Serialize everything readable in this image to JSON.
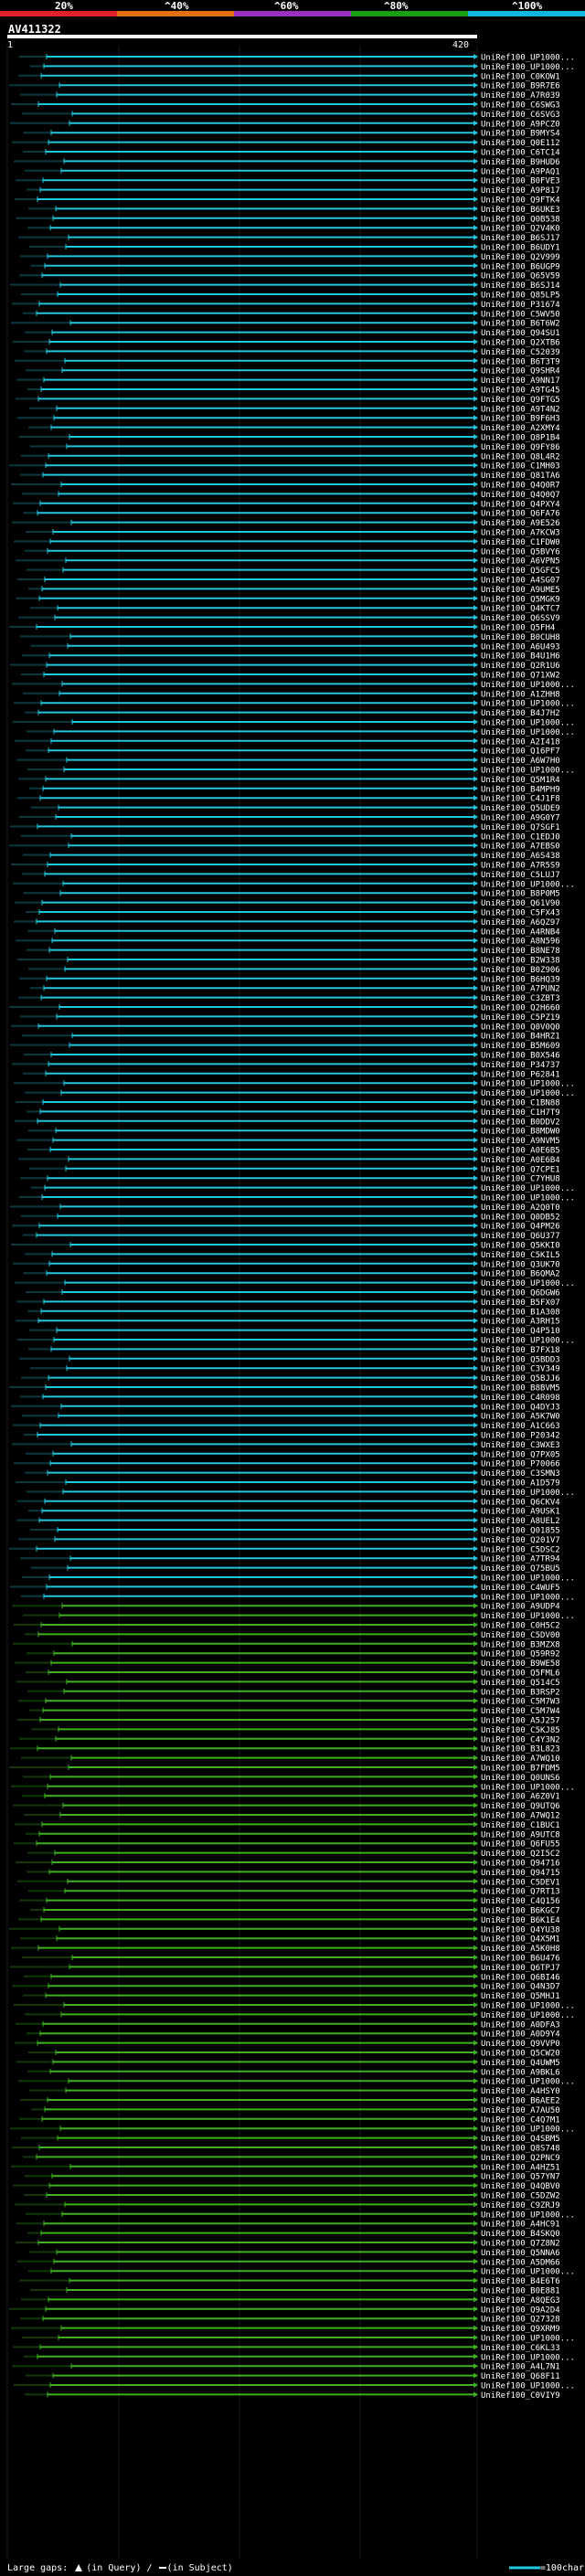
{
  "scale": {
    "ticks": [
      "20%",
      "^40%",
      "^60%",
      "^80%",
      "^100%"
    ],
    "colors": [
      "#e0202a",
      "#e07010",
      "#9a30c0",
      "#18a010",
      "#10b8e0"
    ]
  },
  "query": {
    "id": "AV411322",
    "start": "1",
    "end": "420"
  },
  "hits": [
    {
      "label": "UniRef100_UP1000...",
      "color": "cyan"
    },
    {
      "label": "UniRef100_UP1000...",
      "color": "cyan"
    },
    {
      "label": "UniRef100_C0KOW1",
      "color": "cyan"
    },
    {
      "label": "UniRef100_B9R7E6",
      "color": "cyan"
    },
    {
      "label": "UniRef100_A7R039",
      "color": "cyan"
    },
    {
      "label": "UniRef100_C6SWG3",
      "color": "cyan"
    },
    {
      "label": "UniRef100_C6SVG3",
      "color": "cyan"
    },
    {
      "label": "UniRef100_A9PCZ0",
      "color": "cyan"
    },
    {
      "label": "UniRef100_B9MYS4",
      "color": "cyan"
    },
    {
      "label": "UniRef100_Q0E112",
      "color": "cyan"
    },
    {
      "label": "UniRef100_C6TC14",
      "color": "cyan"
    },
    {
      "label": "UniRef100_B9HUD6",
      "color": "cyan"
    },
    {
      "label": "UniRef100_A9PAQ1",
      "color": "cyan"
    },
    {
      "label": "UniRef100_B0FVE3",
      "color": "cyan"
    },
    {
      "label": "UniRef100_A9P817",
      "color": "cyan"
    },
    {
      "label": "UniRef100_Q9FTK4",
      "color": "cyan"
    },
    {
      "label": "UniRef100_B6UKE3",
      "color": "cyan"
    },
    {
      "label": "UniRef100_Q0B538",
      "color": "cyan"
    },
    {
      "label": "UniRef100_Q2V4K0",
      "color": "cyan"
    },
    {
      "label": "UniRef100_B6SJ17",
      "color": "cyan"
    },
    {
      "label": "UniRef100_B6UDY1",
      "color": "cyan"
    },
    {
      "label": "UniRef100_Q2V999",
      "color": "cyan"
    },
    {
      "label": "UniRef100_B6UGP9",
      "color": "cyan"
    },
    {
      "label": "UniRef100_Q65V59",
      "color": "cyan"
    },
    {
      "label": "UniRef100_B6SJ14",
      "color": "cyan"
    },
    {
      "label": "UniRef100_Q85LP5",
      "color": "cyan"
    },
    {
      "label": "UniRef100_P31674",
      "color": "cyan"
    },
    {
      "label": "UniRef100_C5WV50",
      "color": "cyan"
    },
    {
      "label": "UniRef100_B6T6W2",
      "color": "cyan"
    },
    {
      "label": "UniRef100_Q94SU1",
      "color": "cyan"
    },
    {
      "label": "UniRef100_Q2XTB6",
      "color": "cyan"
    },
    {
      "label": "UniRef100_C52039",
      "color": "cyan"
    },
    {
      "label": "UniRef100_B6T3T9",
      "color": "cyan"
    },
    {
      "label": "UniRef100_Q9SHR4",
      "color": "cyan"
    },
    {
      "label": "UniRef100_A9NN17",
      "color": "cyan"
    },
    {
      "label": "UniRef100_A9TG45",
      "color": "cyan"
    },
    {
      "label": "UniRef100_Q9FTG5",
      "color": "cyan"
    },
    {
      "label": "UniRef100_A9T4N2",
      "color": "cyan"
    },
    {
      "label": "UniRef100_B9F6H3",
      "color": "cyan"
    },
    {
      "label": "UniRef100_A2XMY4",
      "color": "cyan"
    },
    {
      "label": "UniRef100_Q8P1B4",
      "color": "cyan"
    },
    {
      "label": "UniRef100_Q9FY86",
      "color": "cyan"
    },
    {
      "label": "UniRef100_Q8L4R2",
      "color": "cyan"
    },
    {
      "label": "UniRef100_C1MH03",
      "color": "cyan"
    },
    {
      "label": "UniRef100_Q81TA6",
      "color": "cyan"
    },
    {
      "label": "UniRef100_Q4Q0R7",
      "color": "cyan"
    },
    {
      "label": "UniRef100_Q4Q0Q7",
      "color": "cyan"
    },
    {
      "label": "UniRef100_Q4PXY4",
      "color": "cyan"
    },
    {
      "label": "UniRef100_Q6FA76",
      "color": "cyan"
    },
    {
      "label": "UniRef100_A9E526",
      "color": "cyan"
    },
    {
      "label": "UniRef100_A7KCW3",
      "color": "cyan"
    },
    {
      "label": "UniRef100_C1FDW0",
      "color": "cyan"
    },
    {
      "label": "UniRef100_Q5BVY6",
      "color": "cyan"
    },
    {
      "label": "UniRef100_A6VPN5",
      "color": "cyan"
    },
    {
      "label": "UniRef100_Q5GFC5",
      "color": "cyan"
    },
    {
      "label": "UniRef100_A4SG07",
      "color": "cyan"
    },
    {
      "label": "UniRef100_A9UME5",
      "color": "cyan"
    },
    {
      "label": "UniRef100_Q5MGK9",
      "color": "cyan"
    },
    {
      "label": "UniRef100_Q4KTC7",
      "color": "cyan"
    },
    {
      "label": "UniRef100_Q6SSV9",
      "color": "cyan"
    },
    {
      "label": "UniRef100_Q5FH4",
      "color": "cyan"
    },
    {
      "label": "UniRef100_B0CUH8",
      "color": "cyan"
    },
    {
      "label": "UniRef100_A6U493",
      "color": "cyan"
    },
    {
      "label": "UniRef100_B4U1H6",
      "color": "cyan"
    },
    {
      "label": "UniRef100_Q2R1U6",
      "color": "cyan"
    },
    {
      "label": "UniRef100_Q71XW2",
      "color": "cyan"
    },
    {
      "label": "UniRef100_UP1000...",
      "color": "cyan"
    },
    {
      "label": "UniRef100_A1ZHH8",
      "color": "cyan"
    },
    {
      "label": "UniRef100_UP1000...",
      "color": "cyan"
    },
    {
      "label": "UniRef100_B4J7H2",
      "color": "cyan"
    },
    {
      "label": "UniRef100_UP1000...",
      "color": "cyan"
    },
    {
      "label": "UniRef100_UP1000...",
      "color": "cyan"
    },
    {
      "label": "UniRef100_A2I418",
      "color": "cyan"
    },
    {
      "label": "UniRef100_Q16PF7",
      "color": "cyan"
    },
    {
      "label": "UniRef100_A6W7H0",
      "color": "cyan"
    },
    {
      "label": "UniRef100_UP1000...",
      "color": "cyan"
    },
    {
      "label": "UniRef100_Q5M1R4",
      "color": "cyan"
    },
    {
      "label": "UniRef100_B4MPH9",
      "color": "cyan"
    },
    {
      "label": "UniRef100_C4J1F8",
      "color": "cyan"
    },
    {
      "label": "UniRef100_Q5UDE9",
      "color": "cyan"
    },
    {
      "label": "UniRef100_A9G0Y7",
      "color": "cyan"
    },
    {
      "label": "UniRef100_Q7SGF1",
      "color": "cyan"
    },
    {
      "label": "UniRef100_C1EDJ0",
      "color": "cyan"
    },
    {
      "label": "UniRef100_A7EBS0",
      "color": "cyan"
    },
    {
      "label": "UniRef100_A6S438",
      "color": "cyan"
    },
    {
      "label": "UniRef100_A7R5S9",
      "color": "cyan"
    },
    {
      "label": "UniRef100_C5LUJ7",
      "color": "cyan"
    },
    {
      "label": "UniRef100_UP1000...",
      "color": "cyan"
    },
    {
      "label": "UniRef100_B8P0M5",
      "color": "cyan"
    },
    {
      "label": "UniRef100_Q61V90",
      "color": "cyan"
    },
    {
      "label": "UniRef100_C5FX43",
      "color": "cyan"
    },
    {
      "label": "UniRef100_A6QZ97",
      "color": "cyan"
    },
    {
      "label": "UniRef100_A4RNB4",
      "color": "cyan"
    },
    {
      "label": "UniRef100_A8N596",
      "color": "cyan"
    },
    {
      "label": "UniRef100_B8NE78",
      "color": "cyan"
    },
    {
      "label": "UniRef100_B2W338",
      "color": "cyan"
    },
    {
      "label": "UniRef100_B0Z906",
      "color": "cyan"
    },
    {
      "label": "UniRef100_B6HQ39",
      "color": "cyan"
    },
    {
      "label": "UniRef100_A7PUN2",
      "color": "cyan"
    },
    {
      "label": "UniRef100_C3ZBT3",
      "color": "cyan"
    },
    {
      "label": "UniRef100_Q2H660",
      "color": "cyan"
    },
    {
      "label": "UniRef100_C5PZ19",
      "color": "cyan"
    },
    {
      "label": "UniRef100_Q0V0Q0",
      "color": "cyan"
    },
    {
      "label": "UniRef100_B4HRZ1",
      "color": "cyan"
    },
    {
      "label": "UniRef100_B5M609",
      "color": "cyan"
    },
    {
      "label": "UniRef100_B0X546",
      "color": "cyan"
    },
    {
      "label": "UniRef100_P34737",
      "color": "cyan"
    },
    {
      "label": "UniRef100_P62841",
      "color": "cyan"
    },
    {
      "label": "UniRef100_UP1000...",
      "color": "cyan"
    },
    {
      "label": "UniRef100_UP1000...",
      "color": "cyan"
    },
    {
      "label": "UniRef100_C1BN88",
      "color": "cyan"
    },
    {
      "label": "UniRef100_C1H7T9",
      "color": "cyan"
    },
    {
      "label": "UniRef100_B0DDV2",
      "color": "cyan"
    },
    {
      "label": "UniRef100_B8MDW0",
      "color": "cyan"
    },
    {
      "label": "UniRef100_A9NVM5",
      "color": "cyan"
    },
    {
      "label": "UniRef100_A0E6B5",
      "color": "cyan"
    },
    {
      "label": "UniRef100_A0E6B4",
      "color": "cyan"
    },
    {
      "label": "UniRef100_Q7CPE1",
      "color": "cyan"
    },
    {
      "label": "UniRef100_C7YHU8",
      "color": "cyan"
    },
    {
      "label": "UniRef100_UP1000...",
      "color": "cyan"
    },
    {
      "label": "UniRef100_UP1000...",
      "color": "cyan"
    },
    {
      "label": "UniRef100_A2Q0T0",
      "color": "cyan"
    },
    {
      "label": "UniRef100_Q0DB52",
      "color": "cyan"
    },
    {
      "label": "UniRef100_Q4PM26",
      "color": "cyan"
    },
    {
      "label": "UniRef100_Q6U377",
      "color": "cyan"
    },
    {
      "label": "UniRef100_Q5KKI0",
      "color": "cyan"
    },
    {
      "label": "UniRef100_C5KIL5",
      "color": "cyan"
    },
    {
      "label": "UniRef100_Q3UK70",
      "color": "cyan"
    },
    {
      "label": "UniRef100_B6QMA2",
      "color": "cyan"
    },
    {
      "label": "UniRef100_UP1000...",
      "color": "cyan"
    },
    {
      "label": "UniRef100_Q6DGW6",
      "color": "cyan"
    },
    {
      "label": "UniRef100_B5FX07",
      "color": "cyan"
    },
    {
      "label": "UniRef100_B1A308",
      "color": "cyan"
    },
    {
      "label": "UniRef100_A3RH15",
      "color": "cyan"
    },
    {
      "label": "UniRef100_Q4P510",
      "color": "cyan"
    },
    {
      "label": "UniRef100_UP1000...",
      "color": "cyan"
    },
    {
      "label": "UniRef100_B7FX18",
      "color": "cyan"
    },
    {
      "label": "UniRef100_Q5BDD3",
      "color": "cyan"
    },
    {
      "label": "UniRef100_C3V349",
      "color": "cyan"
    },
    {
      "label": "UniRef100_Q5BJJ6",
      "color": "cyan"
    },
    {
      "label": "UniRef100_B8BVM5",
      "color": "cyan"
    },
    {
      "label": "UniRef100_C4R098",
      "color": "cyan"
    },
    {
      "label": "UniRef100_Q4DYJ3",
      "color": "cyan"
    },
    {
      "label": "UniRef100_A5K7W0",
      "color": "cyan"
    },
    {
      "label": "UniRef100_A1C663",
      "color": "cyan"
    },
    {
      "label": "UniRef100_P20342",
      "color": "cyan"
    },
    {
      "label": "UniRef100_C3WXE3",
      "color": "cyan"
    },
    {
      "label": "UniRef100_Q7PX05",
      "color": "cyan"
    },
    {
      "label": "UniRef100_P70066",
      "color": "cyan"
    },
    {
      "label": "UniRef100_C3SMN3",
      "color": "cyan"
    },
    {
      "label": "UniRef100_A1D579",
      "color": "cyan"
    },
    {
      "label": "UniRef100_UP1000...",
      "color": "cyan"
    },
    {
      "label": "UniRef100_Q6CKV4",
      "color": "cyan"
    },
    {
      "label": "UniRef100_A9USK1",
      "color": "cyan"
    },
    {
      "label": "UniRef100_A8UEL2",
      "color": "cyan"
    },
    {
      "label": "UniRef100_Q01855",
      "color": "cyan"
    },
    {
      "label": "UniRef100_Q201V7",
      "color": "cyan"
    },
    {
      "label": "UniRef100_C5DSC2",
      "color": "cyan"
    },
    {
      "label": "UniRef100_A7TR94",
      "color": "cyan"
    },
    {
      "label": "UniRef100_Q75BU5",
      "color": "cyan"
    },
    {
      "label": "UniRef100_UP1000...",
      "color": "cyan"
    },
    {
      "label": "UniRef100_C4WUF5",
      "color": "cyan"
    },
    {
      "label": "UniRef100_UP1000...",
      "color": "cyan"
    },
    {
      "label": "UniRef100_A9UDP4",
      "color": "green"
    },
    {
      "label": "UniRef100_UP1000...",
      "color": "green"
    },
    {
      "label": "UniRef100_C0H5C2",
      "color": "green"
    },
    {
      "label": "UniRef100_C5DV00",
      "color": "green"
    },
    {
      "label": "UniRef100_B3MZX8",
      "color": "green"
    },
    {
      "label": "UniRef100_Q59R92",
      "color": "green"
    },
    {
      "label": "UniRef100_B9WE58",
      "color": "green"
    },
    {
      "label": "UniRef100_Q5FML6",
      "color": "green"
    },
    {
      "label": "UniRef100_Q514C5",
      "color": "green"
    },
    {
      "label": "UniRef100_B3RSP2",
      "color": "green"
    },
    {
      "label": "UniRef100_C5M7W3",
      "color": "green"
    },
    {
      "label": "UniRef100_C5M7W4",
      "color": "green"
    },
    {
      "label": "UniRef100_A5J257",
      "color": "green"
    },
    {
      "label": "UniRef100_C5KJ85",
      "color": "green"
    },
    {
      "label": "UniRef100_C4Y3N2",
      "color": "green"
    },
    {
      "label": "UniRef100_B3L823",
      "color": "green"
    },
    {
      "label": "UniRef100_A7WQ10",
      "color": "green"
    },
    {
      "label": "UniRef100_B7FDM5",
      "color": "green"
    },
    {
      "label": "UniRef100_Q0UNS6",
      "color": "green"
    },
    {
      "label": "UniRef100_UP1000...",
      "color": "green"
    },
    {
      "label": "UniRef100_A6Z0V1",
      "color": "green"
    },
    {
      "label": "UniRef100_Q9UTQ6",
      "color": "green"
    },
    {
      "label": "UniRef100_A7WQ12",
      "color": "green"
    },
    {
      "label": "UniRef100_C1BUC1",
      "color": "green"
    },
    {
      "label": "UniRef100_A9UTC8",
      "color": "green"
    },
    {
      "label": "UniRef100_Q6FU55",
      "color": "green"
    },
    {
      "label": "UniRef100_Q2I5C2",
      "color": "green"
    },
    {
      "label": "UniRef100_Q94716",
      "color": "green"
    },
    {
      "label": "UniRef100_Q94715",
      "color": "green"
    },
    {
      "label": "UniRef100_C5DEV1",
      "color": "green"
    },
    {
      "label": "UniRef100_Q7RT13",
      "color": "green"
    },
    {
      "label": "UniRef100_C4Q156",
      "color": "green"
    },
    {
      "label": "UniRef100_B6KGC7",
      "color": "green"
    },
    {
      "label": "UniRef100_B6K1E4",
      "color": "green"
    },
    {
      "label": "UniRef100_Q4YU38",
      "color": "green"
    },
    {
      "label": "UniRef100_Q4X5M1",
      "color": "green"
    },
    {
      "label": "UniRef100_A5K0H8",
      "color": "green"
    },
    {
      "label": "UniRef100_B6U476",
      "color": "green"
    },
    {
      "label": "UniRef100_Q6TPJ7",
      "color": "green"
    },
    {
      "label": "UniRef100_Q6BI46",
      "color": "green"
    },
    {
      "label": "UniRef100_Q4N3D7",
      "color": "green"
    },
    {
      "label": "UniRef100_Q5MHJ1",
      "color": "green"
    },
    {
      "label": "UniRef100_UP1000...",
      "color": "green"
    },
    {
      "label": "UniRef100_UP1000...",
      "color": "green"
    },
    {
      "label": "UniRef100_A0DFA3",
      "color": "green"
    },
    {
      "label": "UniRef100_A0D9Y4",
      "color": "green"
    },
    {
      "label": "UniRef100_Q9VVP0",
      "color": "green"
    },
    {
      "label": "UniRef100_Q5CW20",
      "color": "green"
    },
    {
      "label": "UniRef100_Q4UWM5",
      "color": "green"
    },
    {
      "label": "UniRef100_A9BKL6",
      "color": "green"
    },
    {
      "label": "UniRef100_UP1000...",
      "color": "green"
    },
    {
      "label": "UniRef100_A4HSY0",
      "color": "green"
    },
    {
      "label": "UniRef100_B6AEE2",
      "color": "green"
    },
    {
      "label": "UniRef100_A7AU50",
      "color": "green"
    },
    {
      "label": "UniRef100_C4Q7M1",
      "color": "green"
    },
    {
      "label": "UniRef100_UP1000...",
      "color": "green"
    },
    {
      "label": "UniRef100_Q4SBM5",
      "color": "green"
    },
    {
      "label": "UniRef100_Q8S748",
      "color": "green"
    },
    {
      "label": "UniRef100_Q2PNC9",
      "color": "green"
    },
    {
      "label": "UniRef100_A4HZ51",
      "color": "green"
    },
    {
      "label": "UniRef100_Q57YN7",
      "color": "green"
    },
    {
      "label": "UniRef100_Q4QBV0",
      "color": "green"
    },
    {
      "label": "UniRef100_C5DZW2",
      "color": "green"
    },
    {
      "label": "UniRef100_C9ZRJ9",
      "color": "green"
    },
    {
      "label": "UniRef100_UP1000...",
      "color": "green"
    },
    {
      "label": "UniRef100_A4HC91",
      "color": "green"
    },
    {
      "label": "UniRef100_B4SKQ0",
      "color": "green"
    },
    {
      "label": "UniRef100_Q7Z8N2",
      "color": "green"
    },
    {
      "label": "UniRef100_Q5NNA6",
      "color": "green"
    },
    {
      "label": "UniRef100_A5DM66",
      "color": "green"
    },
    {
      "label": "UniRef100_UP1000...",
      "color": "green"
    },
    {
      "label": "UniRef100_B4E6T6",
      "color": "green"
    },
    {
      "label": "UniRef100_B0E881",
      "color": "green"
    },
    {
      "label": "UniRef100_A8QEG3",
      "color": "green"
    },
    {
      "label": "UniRef100_Q9A2D4",
      "color": "green"
    },
    {
      "label": "UniRef100_Q27328",
      "color": "green"
    },
    {
      "label": "UniRef100_Q9XRM9",
      "color": "green"
    },
    {
      "label": "UniRef100_UP1000...",
      "color": "green"
    },
    {
      "label": "UniRef100_C6KL33",
      "color": "green"
    },
    {
      "label": "UniRef100_UP1000...",
      "color": "green"
    },
    {
      "label": "UniRef100_A4L7N1",
      "color": "green"
    },
    {
      "label": "UniRef100_Q68F11",
      "color": "green"
    },
    {
      "label": "UniRef100_UP1000...",
      "color": "green"
    },
    {
      "label": "UniRef100_C0VIY9",
      "color": "green"
    }
  ],
  "legend": {
    "large_gaps": "Large gaps:",
    "in_query": "(in Query)",
    "in_subject": "(in Subject)",
    "scale_note": "=100char."
  }
}
